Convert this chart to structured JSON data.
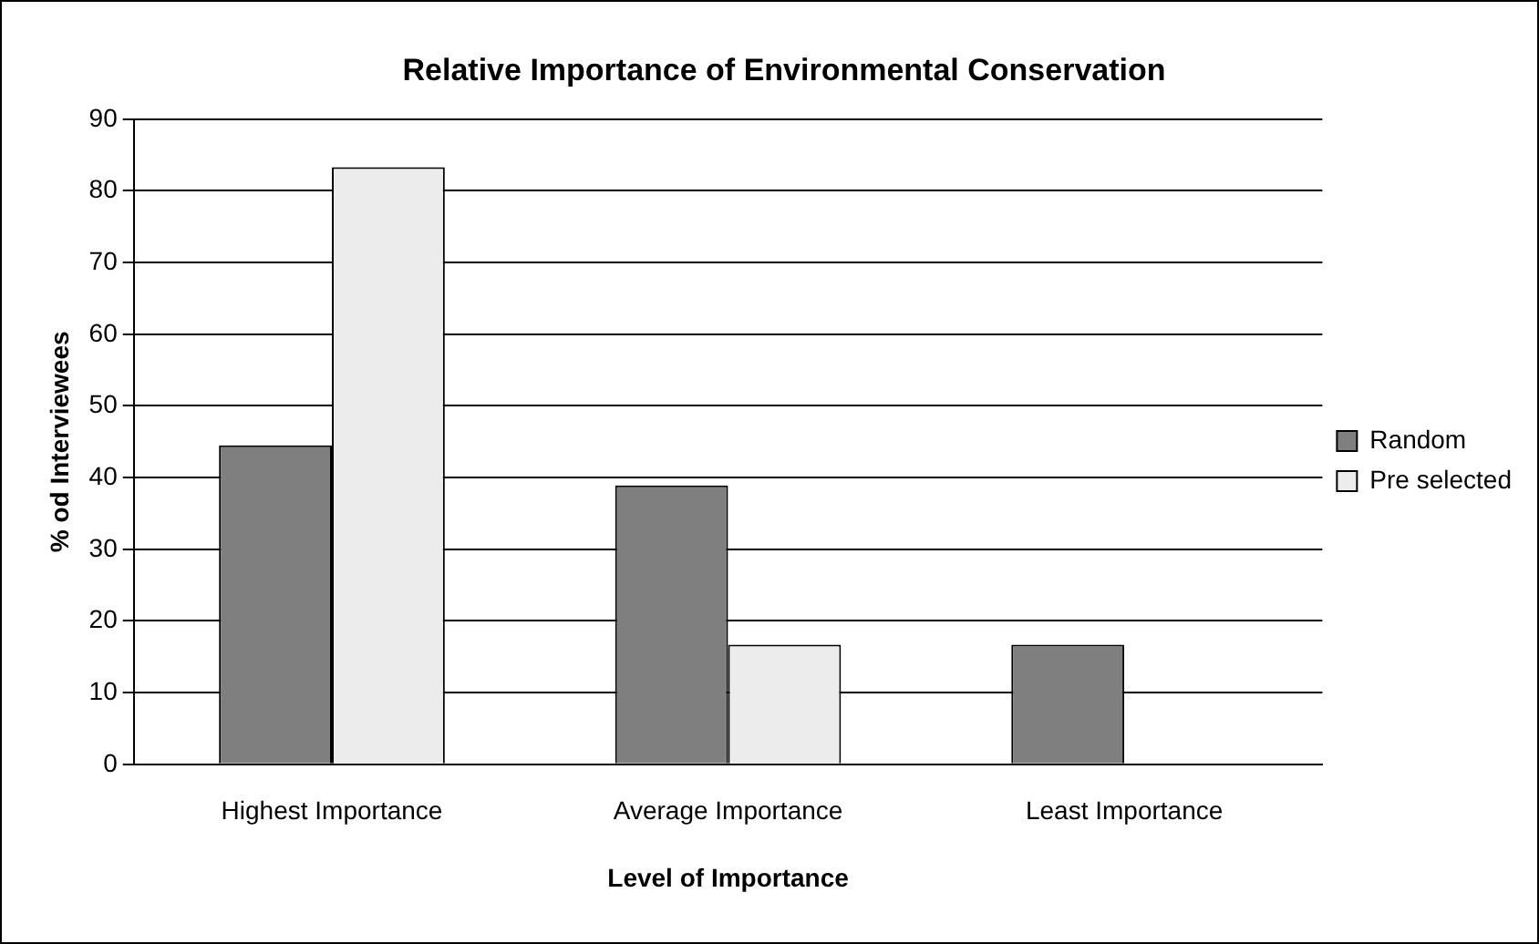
{
  "chart_data": {
    "type": "bar",
    "title": "Relative Importance of Environmental Conservation",
    "xlabel": "Level of Importance",
    "ylabel": "% od Interviewees",
    "categories": [
      "Highest Importance",
      "Average Importance",
      "Least Importance"
    ],
    "series": [
      {
        "name": "Random",
        "color": "#7f7f7f",
        "values": [
          44.5,
          38.9,
          16.7
        ]
      },
      {
        "name": "Pre selected",
        "color": "#ececec",
        "values": [
          83.3,
          16.7,
          null
        ]
      }
    ],
    "ylim": [
      0,
      90
    ],
    "yticks": [
      0,
      10,
      20,
      30,
      40,
      50,
      60,
      70,
      80,
      90
    ],
    "grid": "y",
    "legend": "right"
  }
}
